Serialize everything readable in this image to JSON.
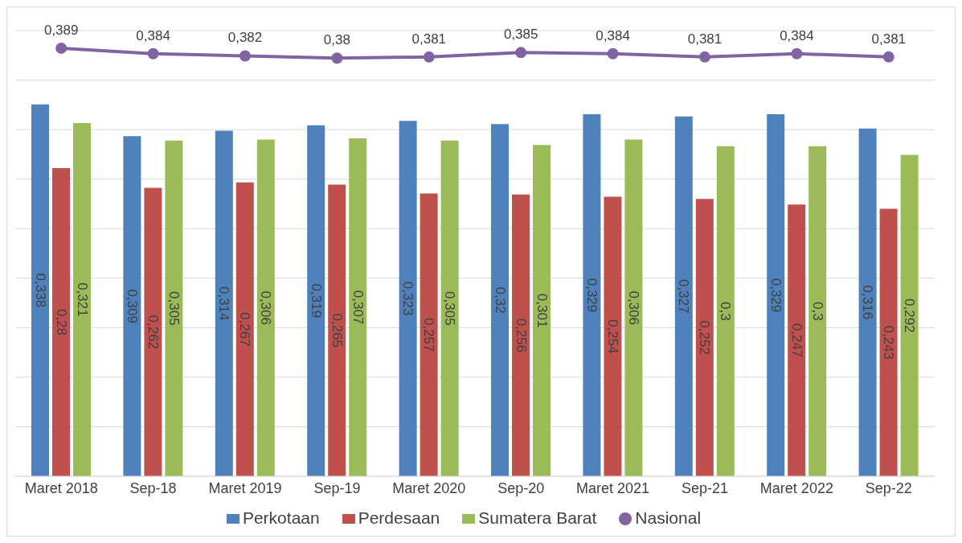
{
  "chart_data": {
    "type": "bar",
    "categories": [
      "Maret 2018",
      "Sep-18",
      "Maret 2019",
      "Sep-19",
      "Maret 2020",
      "Sep-20",
      "Maret 2021",
      "Sep-21",
      "Maret 2022",
      "Sep-22"
    ],
    "series": [
      {
        "name": "Perkotaan",
        "color": "#4f81bd",
        "values": [
          0.338,
          0.309,
          0.314,
          0.319,
          0.323,
          0.32,
          0.329,
          0.327,
          0.329,
          0.316
        ],
        "value_labels": [
          "0,338",
          "0,309",
          "0,314",
          "0,319",
          "0,323",
          "0,32",
          "0,329",
          "0,327",
          "0,329",
          "0,316"
        ]
      },
      {
        "name": "Perdesaan",
        "color": "#c0504d",
        "values": [
          0.28,
          0.262,
          0.267,
          0.265,
          0.257,
          0.256,
          0.254,
          0.252,
          0.247,
          0.243
        ],
        "value_labels": [
          "0,28",
          "0,262",
          "0,267",
          "0,265",
          "0,257",
          "0,256",
          "0,254",
          "0,252",
          "0,247",
          "0,243"
        ]
      },
      {
        "name": "Sumatera Barat",
        "color": "#9bbb59",
        "values": [
          0.321,
          0.305,
          0.306,
          0.307,
          0.305,
          0.301,
          0.306,
          0.3,
          0.3,
          0.292
        ],
        "value_labels": [
          "0,321",
          "0,305",
          "0,306",
          "0,307",
          "0,305",
          "0,301",
          "0,306",
          "0,3",
          "0,3",
          "0,292"
        ]
      },
      {
        "name": "Nasional",
        "color": "#8064a2",
        "type": "line",
        "values": [
          0.389,
          0.384,
          0.382,
          0.38,
          0.381,
          0.385,
          0.384,
          0.381,
          0.384,
          0.381
        ],
        "value_labels": [
          "0,389",
          "0,384",
          "0,382",
          "0,38",
          "0,381",
          "0,385",
          "0,384",
          "0,381",
          "0,384",
          "0,381"
        ]
      }
    ],
    "grid": "y",
    "legend": "bottom",
    "tick_labels": "x",
    "marker": "circle",
    "line_style": "solid"
  }
}
